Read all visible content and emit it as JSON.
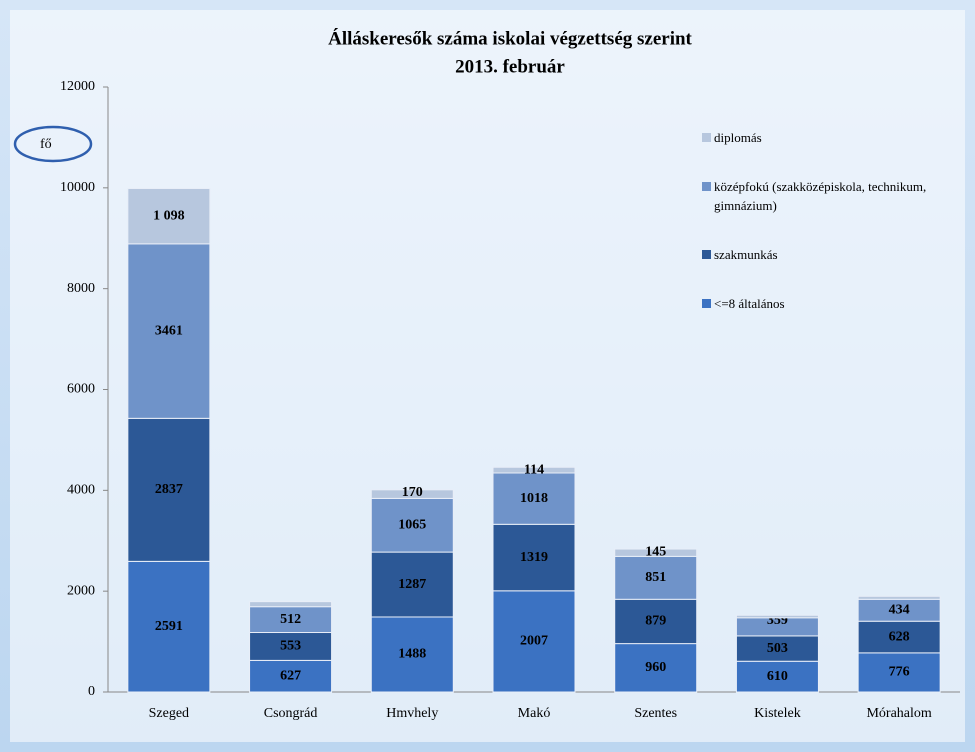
{
  "chart_data": {
    "type": "stacked_bar",
    "title": "Álláskeresők száma iskolai végzettség szerint",
    "subtitle": "2013. február",
    "y_label": "fő",
    "categories": [
      "Szeged",
      "Csongrád",
      "Hmvhely",
      "Makó",
      "Szentes",
      "Kistelek",
      "Mórahalom"
    ],
    "series": [
      {
        "name": "<=8 általános",
        "color": "#3b72c2",
        "values": [
          2591,
          627,
          1488,
          2007,
          960,
          610,
          776
        ]
      },
      {
        "name": "szakmunkás",
        "color": "#2c5896",
        "values": [
          2837,
          553,
          1287,
          1319,
          879,
          503,
          628
        ]
      },
      {
        "name": "középfokú (szakközépiskola, technikum, gimnázium)",
        "color": "#6f93c9",
        "values": [
          3461,
          512,
          1065,
          1018,
          851,
          359,
          434
        ]
      },
      {
        "name": "diplomás",
        "color": "#b7c7de",
        "values": [
          1098,
          100,
          170,
          114,
          145,
          50,
          60
        ],
        "value_labels": [
          "1 098",
          null,
          "170",
          "114",
          "145",
          null,
          null
        ]
      }
    ],
    "ylim": [
      0,
      12000
    ],
    "yticks": [
      0,
      2000,
      4000,
      6000,
      8000,
      10000,
      12000
    ],
    "grid": false
  }
}
